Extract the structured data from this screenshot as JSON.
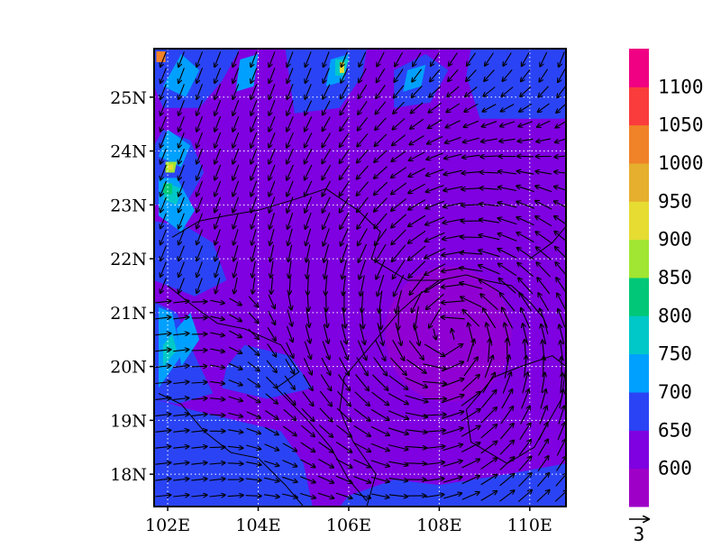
{
  "map": {
    "type": "wind-vector-over-filled-contour",
    "lon_range": [
      101.7,
      110.8
    ],
    "lat_range": [
      17.4,
      25.9
    ],
    "grid": "dotted",
    "lon_ticks": [
      {
        "value": 102,
        "label": "102E"
      },
      {
        "value": 104,
        "label": "104E"
      },
      {
        "value": 106,
        "label": "106E"
      },
      {
        "value": 108,
        "label": "108E"
      },
      {
        "value": 110,
        "label": "110E"
      }
    ],
    "lat_ticks": [
      {
        "value": 18,
        "label": "18N"
      },
      {
        "value": 19,
        "label": "19N"
      },
      {
        "value": 20,
        "label": "20N"
      },
      {
        "value": 21,
        "label": "21N"
      },
      {
        "value": 22,
        "label": "22N"
      },
      {
        "value": 23,
        "label": "23N"
      },
      {
        "value": 24,
        "label": "24N"
      },
      {
        "value": 25,
        "label": "25N"
      }
    ],
    "cyclone_center": {
      "lon": 108.2,
      "lat": 20.6
    },
    "vector_reference": {
      "label": "3",
      "magnitude": 3
    }
  },
  "colorbar": {
    "levels": [
      {
        "label": "",
        "color": "#9f00c8"
      },
      {
        "label": "600",
        "color": "#7f00e0"
      },
      {
        "label": "650",
        "color": "#2a44f5"
      },
      {
        "label": "700",
        "color": "#00a0ff"
      },
      {
        "label": "750",
        "color": "#00c8c8"
      },
      {
        "label": "800",
        "color": "#00c878"
      },
      {
        "label": "850",
        "color": "#a0e632"
      },
      {
        "label": "900",
        "color": "#e6dc32"
      },
      {
        "label": "950",
        "color": "#e6af2d"
      },
      {
        "label": "1000",
        "color": "#f08228"
      },
      {
        "label": "1050",
        "color": "#fa3c3c"
      },
      {
        "label": "1100",
        "color": "#f00082"
      }
    ]
  },
  "fill_regions": [
    {
      "color": "#2a44f5",
      "points": [
        [
          105.8,
          17.4
        ],
        [
          110.8,
          17.4
        ],
        [
          110.8,
          18.2
        ],
        [
          109.5,
          18.0
        ],
        [
          108.0,
          17.8
        ],
        [
          107.0,
          17.9
        ],
        [
          106.0,
          17.6
        ]
      ]
    },
    {
      "color": "#2a44f5",
      "points": [
        [
          101.7,
          17.4
        ],
        [
          105.2,
          17.4
        ],
        [
          105.0,
          18.2
        ],
        [
          104.5,
          18.8
        ],
        [
          103.5,
          19.0
        ],
        [
          102.5,
          19.2
        ],
        [
          101.7,
          19.4
        ]
      ]
    },
    {
      "color": "#2a44f5",
      "points": [
        [
          101.7,
          19.4
        ],
        [
          102.2,
          19.3
        ],
        [
          103.0,
          19.5
        ],
        [
          102.6,
          20.2
        ],
        [
          102.2,
          21.0
        ],
        [
          101.7,
          21.2
        ]
      ]
    },
    {
      "color": "#2a44f5",
      "points": [
        [
          103.2,
          19.6
        ],
        [
          104.2,
          19.4
        ],
        [
          105.2,
          19.6
        ],
        [
          104.7,
          20.2
        ],
        [
          103.7,
          20.4
        ],
        [
          103.3,
          20.0
        ]
      ]
    },
    {
      "color": "#2a44f5",
      "points": [
        [
          101.7,
          21.6
        ],
        [
          102.6,
          21.3
        ],
        [
          103.3,
          21.6
        ],
        [
          103.0,
          22.3
        ],
        [
          102.4,
          22.6
        ],
        [
          101.7,
          22.7
        ]
      ]
    },
    {
      "color": "#2a44f5",
      "points": [
        [
          101.7,
          23.0
        ],
        [
          102.4,
          23.0
        ],
        [
          102.8,
          23.6
        ],
        [
          102.5,
          24.2
        ],
        [
          101.9,
          24.4
        ],
        [
          101.7,
          24.1
        ]
      ]
    },
    {
      "color": "#2a44f5",
      "points": [
        [
          101.9,
          24.8
        ],
        [
          102.7,
          24.8
        ],
        [
          103.2,
          25.3
        ],
        [
          103.6,
          25.9
        ],
        [
          101.7,
          25.9
        ],
        [
          101.7,
          25.2
        ]
      ]
    },
    {
      "color": "#2a44f5",
      "points": [
        [
          108.9,
          24.6
        ],
        [
          110.8,
          24.6
        ],
        [
          110.8,
          25.9
        ],
        [
          108.7,
          25.9
        ],
        [
          108.6,
          25.4
        ]
      ]
    },
    {
      "color": "#2a44f5",
      "points": [
        [
          104.8,
          24.7
        ],
        [
          105.8,
          24.8
        ],
        [
          106.3,
          25.4
        ],
        [
          106.4,
          25.9
        ],
        [
          104.6,
          25.9
        ]
      ]
    },
    {
      "color": "#2a44f5",
      "points": [
        [
          107.0,
          24.8
        ],
        [
          107.8,
          24.9
        ],
        [
          108.2,
          25.5
        ],
        [
          107.7,
          25.8
        ],
        [
          107.0,
          25.5
        ]
      ]
    },
    {
      "color": "#00a0ff",
      "points": [
        [
          101.8,
          19.6
        ],
        [
          102.3,
          20.2
        ],
        [
          102.1,
          21.0
        ],
        [
          101.8,
          21.1
        ]
      ]
    },
    {
      "color": "#00a0ff",
      "points": [
        [
          102.3,
          20.0
        ],
        [
          102.7,
          20.5
        ],
        [
          102.5,
          21.0
        ],
        [
          102.2,
          20.7
        ]
      ]
    },
    {
      "color": "#00a0ff",
      "points": [
        [
          101.8,
          22.8
        ],
        [
          102.3,
          22.5
        ],
        [
          102.6,
          22.9
        ],
        [
          102.2,
          23.5
        ],
        [
          101.8,
          23.5
        ]
      ]
    },
    {
      "color": "#00a0ff",
      "points": [
        [
          101.8,
          23.9
        ],
        [
          102.3,
          23.7
        ],
        [
          102.5,
          24.1
        ],
        [
          102.0,
          24.4
        ]
      ]
    },
    {
      "color": "#00a0ff",
      "points": [
        [
          101.9,
          25.2
        ],
        [
          102.4,
          25.0
        ],
        [
          102.7,
          25.5
        ],
        [
          102.3,
          25.8
        ]
      ]
    },
    {
      "color": "#00a0ff",
      "points": [
        [
          103.5,
          25.1
        ],
        [
          103.9,
          25.2
        ],
        [
          104.0,
          25.8
        ],
        [
          103.6,
          25.7
        ]
      ]
    },
    {
      "color": "#00a0ff",
      "points": [
        [
          105.5,
          25.2
        ],
        [
          105.9,
          25.3
        ],
        [
          106.0,
          25.8
        ],
        [
          105.6,
          25.7
        ]
      ]
    },
    {
      "color": "#00a0ff",
      "points": [
        [
          107.2,
          25.1
        ],
        [
          107.6,
          25.2
        ],
        [
          107.7,
          25.6
        ],
        [
          107.3,
          25.5
        ]
      ]
    },
    {
      "color": "#00c8c8",
      "points": [
        [
          101.9,
          20.0
        ],
        [
          102.2,
          20.3
        ],
        [
          102.1,
          20.6
        ],
        [
          101.9,
          20.4
        ]
      ]
    },
    {
      "color": "#00c8c8",
      "points": [
        [
          101.9,
          23.1
        ],
        [
          102.2,
          23.0
        ],
        [
          102.3,
          23.3
        ],
        [
          102.0,
          23.4
        ]
      ]
    },
    {
      "color": "#00c8c8",
      "points": [
        [
          105.7,
          25.4
        ],
        [
          105.9,
          25.4
        ],
        [
          106.0,
          25.7
        ],
        [
          105.7,
          25.7
        ]
      ]
    },
    {
      "color": "#00c878",
      "points": [
        [
          101.9,
          23.2
        ],
        [
          102.1,
          23.2
        ],
        [
          102.1,
          23.4
        ],
        [
          101.9,
          23.4
        ]
      ]
    },
    {
      "color": "#a0e632",
      "points": [
        [
          101.95,
          23.6
        ],
        [
          102.15,
          23.6
        ],
        [
          102.2,
          23.8
        ],
        [
          101.95,
          23.8
        ]
      ]
    },
    {
      "color": "#e6dc32",
      "points": [
        [
          102.0,
          23.65
        ],
        [
          102.12,
          23.65
        ],
        [
          102.12,
          23.75
        ],
        [
          102.0,
          23.75
        ]
      ]
    },
    {
      "color": "#e6dc32",
      "points": [
        [
          105.8,
          25.45
        ],
        [
          105.9,
          25.45
        ],
        [
          105.9,
          25.65
        ],
        [
          105.8,
          25.65
        ]
      ]
    },
    {
      "color": "#f08228",
      "points": [
        [
          101.75,
          25.65
        ],
        [
          101.95,
          25.65
        ],
        [
          101.95,
          25.85
        ],
        [
          101.75,
          25.85
        ]
      ]
    }
  ],
  "coastlines": [
    [
      [
        106.4,
        17.4
      ],
      [
        106.6,
        18.0
      ],
      [
        106.1,
        18.6
      ],
      [
        105.8,
        19.2
      ],
      [
        105.9,
        19.8
      ],
      [
        106.3,
        20.2
      ],
      [
        106.7,
        20.6
      ],
      [
        107.1,
        21.0
      ],
      [
        107.5,
        21.3
      ],
      [
        108.0,
        21.6
      ],
      [
        108.6,
        21.7
      ],
      [
        109.0,
        21.6
      ],
      [
        109.6,
        21.5
      ],
      [
        110.0,
        21.2
      ],
      [
        110.3,
        20.9
      ],
      [
        110.4,
        20.6
      ]
    ],
    [
      [
        108.6,
        19.2
      ],
      [
        108.7,
        18.6
      ],
      [
        109.5,
        18.2
      ],
      [
        110.1,
        18.5
      ],
      [
        110.7,
        19.4
      ],
      [
        110.8,
        20.0
      ],
      [
        110.5,
        20.2
      ],
      [
        109.8,
        20.0
      ],
      [
        109.2,
        19.8
      ],
      [
        108.6,
        19.2
      ]
    ],
    [
      [
        102.1,
        22.4
      ],
      [
        102.7,
        22.7
      ],
      [
        103.3,
        22.8
      ],
      [
        104.0,
        22.9
      ],
      [
        104.8,
        23.1
      ],
      [
        105.5,
        23.3
      ],
      [
        106.2,
        22.9
      ],
      [
        106.7,
        22.5
      ],
      [
        106.5,
        22.0
      ],
      [
        107.3,
        21.6
      ],
      [
        108.0,
        21.6
      ]
    ],
    [
      [
        102.0,
        21.5
      ],
      [
        102.6,
        21.1
      ],
      [
        103.1,
        20.8
      ],
      [
        103.7,
        20.7
      ],
      [
        104.5,
        20.4
      ],
      [
        104.9,
        19.9
      ],
      [
        104.4,
        19.6
      ],
      [
        105.1,
        19.0
      ],
      [
        105.6,
        18.5
      ],
      [
        106.0,
        17.9
      ],
      [
        106.4,
        17.5
      ]
    ],
    [
      [
        101.8,
        19.5
      ],
      [
        102.3,
        19.3
      ],
      [
        102.8,
        18.8
      ],
      [
        103.4,
        18.4
      ],
      [
        104.0,
        18.3
      ],
      [
        104.6,
        17.8
      ],
      [
        105.0,
        17.4
      ]
    ],
    [
      [
        110.0,
        22.0
      ],
      [
        110.5,
        22.3
      ],
      [
        110.8,
        22.6
      ]
    ]
  ],
  "wind": {
    "grid_lon": [
      101.9,
      110.7,
      0.4
    ],
    "grid_lat": [
      17.6,
      25.8,
      0.3
    ],
    "vortex_radius": 3.2
  }
}
